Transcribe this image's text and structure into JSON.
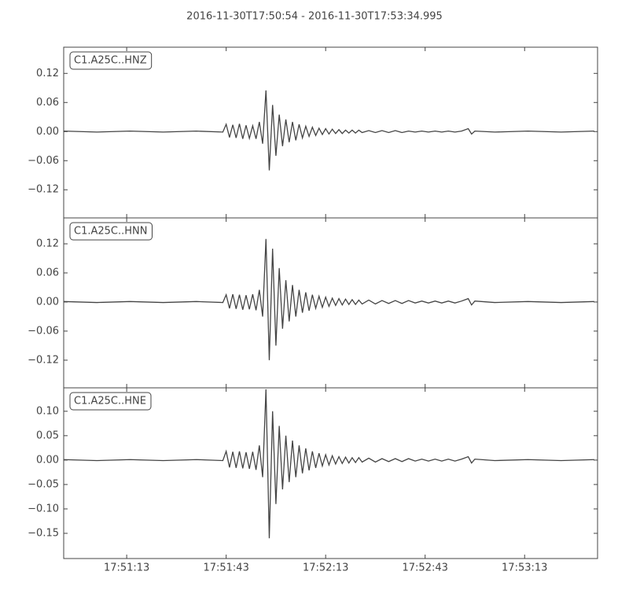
{
  "title": "2016-11-30T17:50:54  -  2016-11-30T17:53:34.995",
  "chart_data": [
    {
      "type": "line",
      "legend": "upper left",
      "grid": false,
      "x": [
        "17:50:54",
        "17:51:04",
        "17:51:14",
        "17:51:24",
        "17:51:34",
        "17:51:42",
        "17:51:43",
        "17:51:44",
        "17:51:45",
        "17:51:46",
        "17:51:47",
        "17:51:48",
        "17:51:49",
        "17:51:50",
        "17:51:51",
        "17:51:52",
        "17:51:53",
        "17:51:54",
        "17:51:55",
        "17:51:56",
        "17:51:57",
        "17:51:58",
        "17:51:59",
        "17:52:00",
        "17:52:01",
        "17:52:02",
        "17:52:03",
        "17:52:04",
        "17:52:05",
        "17:52:06",
        "17:52:07",
        "17:52:08",
        "17:52:09",
        "17:52:10",
        "17:52:11",
        "17:52:12",
        "17:52:13",
        "17:52:14",
        "17:52:15",
        "17:52:16",
        "17:52:17",
        "17:52:18",
        "17:52:19",
        "17:52:20",
        "17:52:21",
        "17:52:22",
        "17:52:23",
        "17:52:24",
        "17:52:26",
        "17:52:28",
        "17:52:30",
        "17:52:32",
        "17:52:34",
        "17:52:36",
        "17:52:38",
        "17:52:40",
        "17:52:42",
        "17:52:44",
        "17:52:46",
        "17:52:48",
        "17:52:50",
        "17:52:52",
        "17:52:54",
        "17:52:56",
        "17:52:57",
        "17:52:58",
        "17:53:04",
        "17:53:14",
        "17:53:24",
        "17:53:34"
      ],
      "series": [
        {
          "name": "C1.A25C..HNZ",
          "color": "#444444",
          "values": [
            0.001,
            -0.001,
            0.001,
            -0.001,
            0.001,
            -0.001,
            0.015,
            -0.012,
            0.014,
            -0.013,
            0.016,
            -0.015,
            0.013,
            -0.014,
            0.012,
            -0.015,
            0.02,
            -0.025,
            0.085,
            -0.08,
            0.055,
            -0.05,
            0.035,
            -0.03,
            0.025,
            -0.022,
            0.02,
            -0.018,
            0.015,
            -0.013,
            0.011,
            -0.01,
            0.009,
            -0.008,
            0.007,
            -0.006,
            0.006,
            -0.005,
            0.005,
            -0.004,
            0.004,
            -0.004,
            0.003,
            -0.003,
            0.003,
            -0.003,
            0.003,
            -0.002,
            0.002,
            -0.002,
            0.002,
            -0.002,
            0.002,
            -0.002,
            0.001,
            -0.001,
            0.001,
            -0.001,
            0.001,
            -0.001,
            0.001,
            -0.001,
            0.001,
            0.006,
            -0.005,
            0.001,
            -0.001,
            0.001,
            -0.001,
            0.001
          ]
        }
      ],
      "xlim": [
        "17:50:54",
        "17:53:34.995"
      ],
      "xticks": [
        "17:51:13",
        "17:51:43",
        "17:52:13",
        "17:52:43",
        "17:53:13"
      ],
      "ylim": [
        -0.178,
        0.174
      ],
      "yticks": [
        {
          "value": -0.12,
          "label": "−0.12"
        },
        {
          "value": -0.06,
          "label": "−0.06"
        },
        {
          "value": 0,
          "label": "0.00"
        },
        0.06,
        0.12
      ]
    },
    {
      "type": "line",
      "legend": "upper left",
      "grid": false,
      "x": [
        "17:50:54",
        "17:51:04",
        "17:51:14",
        "17:51:24",
        "17:51:34",
        "17:51:42",
        "17:51:43",
        "17:51:44",
        "17:51:45",
        "17:51:46",
        "17:51:47",
        "17:51:48",
        "17:51:49",
        "17:51:50",
        "17:51:51",
        "17:51:52",
        "17:51:53",
        "17:51:54",
        "17:51:55",
        "17:51:56",
        "17:51:57",
        "17:51:58",
        "17:51:59",
        "17:52:00",
        "17:52:01",
        "17:52:02",
        "17:52:03",
        "17:52:04",
        "17:52:05",
        "17:52:06",
        "17:52:07",
        "17:52:08",
        "17:52:09",
        "17:52:10",
        "17:52:11",
        "17:52:12",
        "17:52:13",
        "17:52:14",
        "17:52:15",
        "17:52:16",
        "17:52:17",
        "17:52:18",
        "17:52:19",
        "17:52:20",
        "17:52:21",
        "17:52:22",
        "17:52:23",
        "17:52:24",
        "17:52:26",
        "17:52:28",
        "17:52:30",
        "17:52:32",
        "17:52:34",
        "17:52:36",
        "17:52:38",
        "17:52:40",
        "17:52:42",
        "17:52:44",
        "17:52:46",
        "17:52:48",
        "17:52:50",
        "17:52:52",
        "17:52:54",
        "17:52:56",
        "17:52:57",
        "17:52:58",
        "17:53:04",
        "17:53:14",
        "17:53:24",
        "17:53:34"
      ],
      "series": [
        {
          "name": "C1.A25C..HNN",
          "color": "#444444",
          "values": [
            0.001,
            -0.001,
            0.001,
            -0.001,
            0.001,
            -0.001,
            0.015,
            -0.013,
            0.016,
            -0.014,
            0.015,
            -0.016,
            0.014,
            -0.015,
            0.016,
            -0.017,
            0.025,
            -0.03,
            0.13,
            -0.12,
            0.11,
            -0.09,
            0.07,
            -0.055,
            0.045,
            -0.04,
            0.035,
            -0.03,
            0.025,
            -0.022,
            0.02,
            -0.018,
            0.015,
            -0.013,
            0.012,
            -0.011,
            0.01,
            -0.009,
            0.008,
            -0.007,
            0.007,
            -0.006,
            0.006,
            -0.005,
            0.005,
            -0.005,
            0.004,
            -0.004,
            0.004,
            -0.004,
            0.003,
            -0.003,
            0.003,
            -0.003,
            0.003,
            -0.002,
            0.002,
            -0.002,
            0.002,
            -0.002,
            0.002,
            -0.002,
            0.002,
            0.007,
            -0.006,
            0.002,
            -0.001,
            0.001,
            -0.001,
            0.001
          ]
        }
      ],
      "xlim": [
        "17:50:54",
        "17:53:34.995"
      ],
      "xticks": [
        "17:51:13",
        "17:51:43",
        "17:52:13",
        "17:52:43",
        "17:53:13"
      ],
      "ylim": [
        -0.177,
        0.1735
      ],
      "yticks": [
        {
          "value": -0.12,
          "label": "−0.12"
        },
        {
          "value": -0.06,
          "label": "−0.06"
        },
        {
          "value": 0,
          "label": "0.00"
        },
        0.06,
        0.12
      ]
    },
    {
      "type": "line",
      "legend": "upper left",
      "grid": false,
      "x": [
        "17:50:54",
        "17:51:04",
        "17:51:14",
        "17:51:24",
        "17:51:34",
        "17:51:42",
        "17:51:43",
        "17:51:44",
        "17:51:45",
        "17:51:46",
        "17:51:47",
        "17:51:48",
        "17:51:49",
        "17:51:50",
        "17:51:51",
        "17:51:52",
        "17:51:53",
        "17:51:54",
        "17:51:55",
        "17:51:56",
        "17:51:57",
        "17:51:58",
        "17:51:59",
        "17:52:00",
        "17:52:01",
        "17:52:02",
        "17:52:03",
        "17:52:04",
        "17:52:05",
        "17:52:06",
        "17:52:07",
        "17:52:08",
        "17:52:09",
        "17:52:10",
        "17:52:11",
        "17:52:12",
        "17:52:13",
        "17:52:14",
        "17:52:15",
        "17:52:16",
        "17:52:17",
        "17:52:18",
        "17:52:19",
        "17:52:20",
        "17:52:21",
        "17:52:22",
        "17:52:23",
        "17:52:24",
        "17:52:26",
        "17:52:28",
        "17:52:30",
        "17:52:32",
        "17:52:34",
        "17:52:36",
        "17:52:38",
        "17:52:40",
        "17:52:42",
        "17:52:44",
        "17:52:46",
        "17:52:48",
        "17:52:50",
        "17:52:52",
        "17:52:54",
        "17:52:56",
        "17:52:57",
        "17:52:58",
        "17:53:04",
        "17:53:14",
        "17:53:24",
        "17:53:34"
      ],
      "series": [
        {
          "name": "C1.A25C..HNE",
          "color": "#444444",
          "values": [
            0.001,
            -0.001,
            0.001,
            -0.001,
            0.001,
            -0.001,
            0.018,
            -0.015,
            0.017,
            -0.016,
            0.018,
            -0.017,
            0.016,
            -0.018,
            0.017,
            -0.02,
            0.03,
            -0.035,
            0.145,
            -0.16,
            0.1,
            -0.09,
            0.07,
            -0.06,
            0.05,
            -0.045,
            0.04,
            -0.035,
            0.03,
            -0.027,
            0.024,
            -0.021,
            0.018,
            -0.016,
            0.014,
            -0.012,
            0.011,
            -0.01,
            0.009,
            -0.008,
            0.007,
            -0.007,
            0.006,
            -0.006,
            0.005,
            -0.005,
            0.005,
            -0.004,
            0.004,
            -0.004,
            0.003,
            -0.003,
            0.003,
            -0.003,
            0.003,
            -0.002,
            0.002,
            -0.002,
            0.002,
            -0.002,
            0.002,
            -0.002,
            0.002,
            0.007,
            -0.006,
            0.002,
            -0.001,
            0.001,
            -0.001,
            0.001
          ]
        }
      ],
      "xlim": [
        "17:50:54",
        "17:53:34.995"
      ],
      "xticks": [
        "17:51:13",
        "17:51:43",
        "17:52:13",
        "17:52:43",
        "17:53:13"
      ],
      "ylim": [
        -0.2016,
        0.148
      ],
      "yticks": [
        {
          "value": -0.15,
          "label": "−0.15"
        },
        {
          "value": -0.1,
          "label": "−0.10"
        },
        {
          "value": -0.05,
          "label": "−0.05"
        },
        {
          "value": 0,
          "label": "0.00"
        },
        0.05,
        {
          "value": 0.1,
          "label": "0.10"
        }
      ]
    }
  ]
}
